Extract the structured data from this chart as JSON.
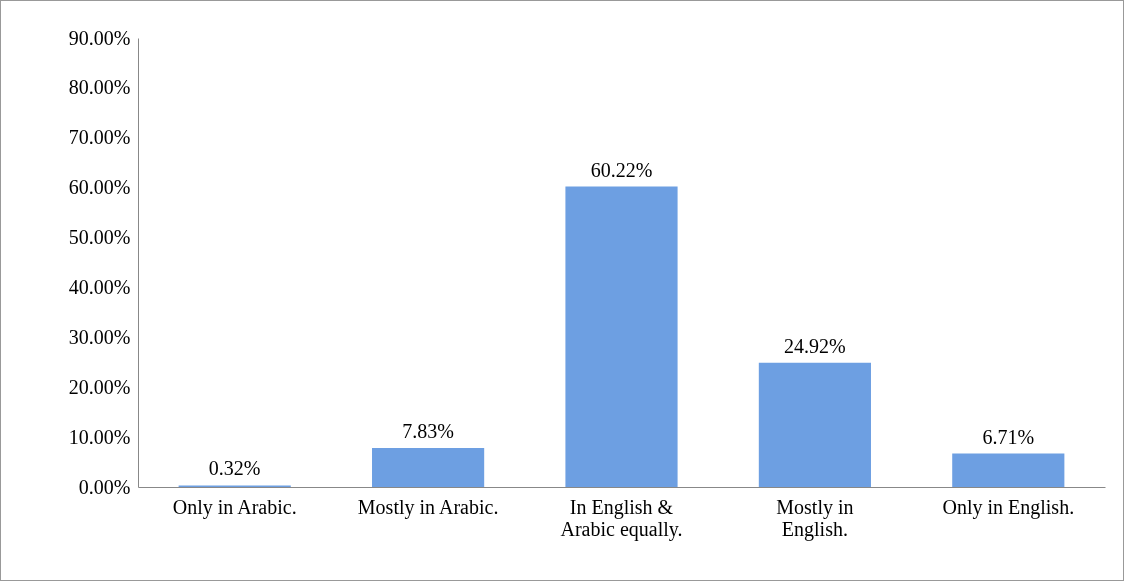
{
  "chart_data": {
    "type": "bar",
    "categories": [
      "Only in Arabic.",
      "Mostly in Arabic.",
      "In English & Arabic equally.",
      "Mostly in English.",
      "Only in English."
    ],
    "values": [
      0.32,
      7.83,
      60.22,
      24.92,
      6.71
    ],
    "value_labels": [
      "0.32%",
      "7.83%",
      "60.22%",
      "24.92%",
      "6.71%"
    ],
    "color": "#6d9fe2",
    "ylim": [
      0,
      90
    ],
    "yticks": [
      {
        "value": 0,
        "label": "0.00%"
      },
      {
        "value": 10,
        "label": "10.00%"
      },
      {
        "value": 20,
        "label": "20.00%"
      },
      {
        "value": 30,
        "label": "30.00%"
      },
      {
        "value": 40,
        "label": "40.00%"
      },
      {
        "value": 50,
        "label": "50.00%"
      },
      {
        "value": 60,
        "label": "60.00%"
      },
      {
        "value": 70,
        "label": "70.00%"
      },
      {
        "value": 80,
        "label": "80.00%"
      },
      {
        "value": 90,
        "label": "90.00%"
      }
    ],
    "grid": false
  }
}
